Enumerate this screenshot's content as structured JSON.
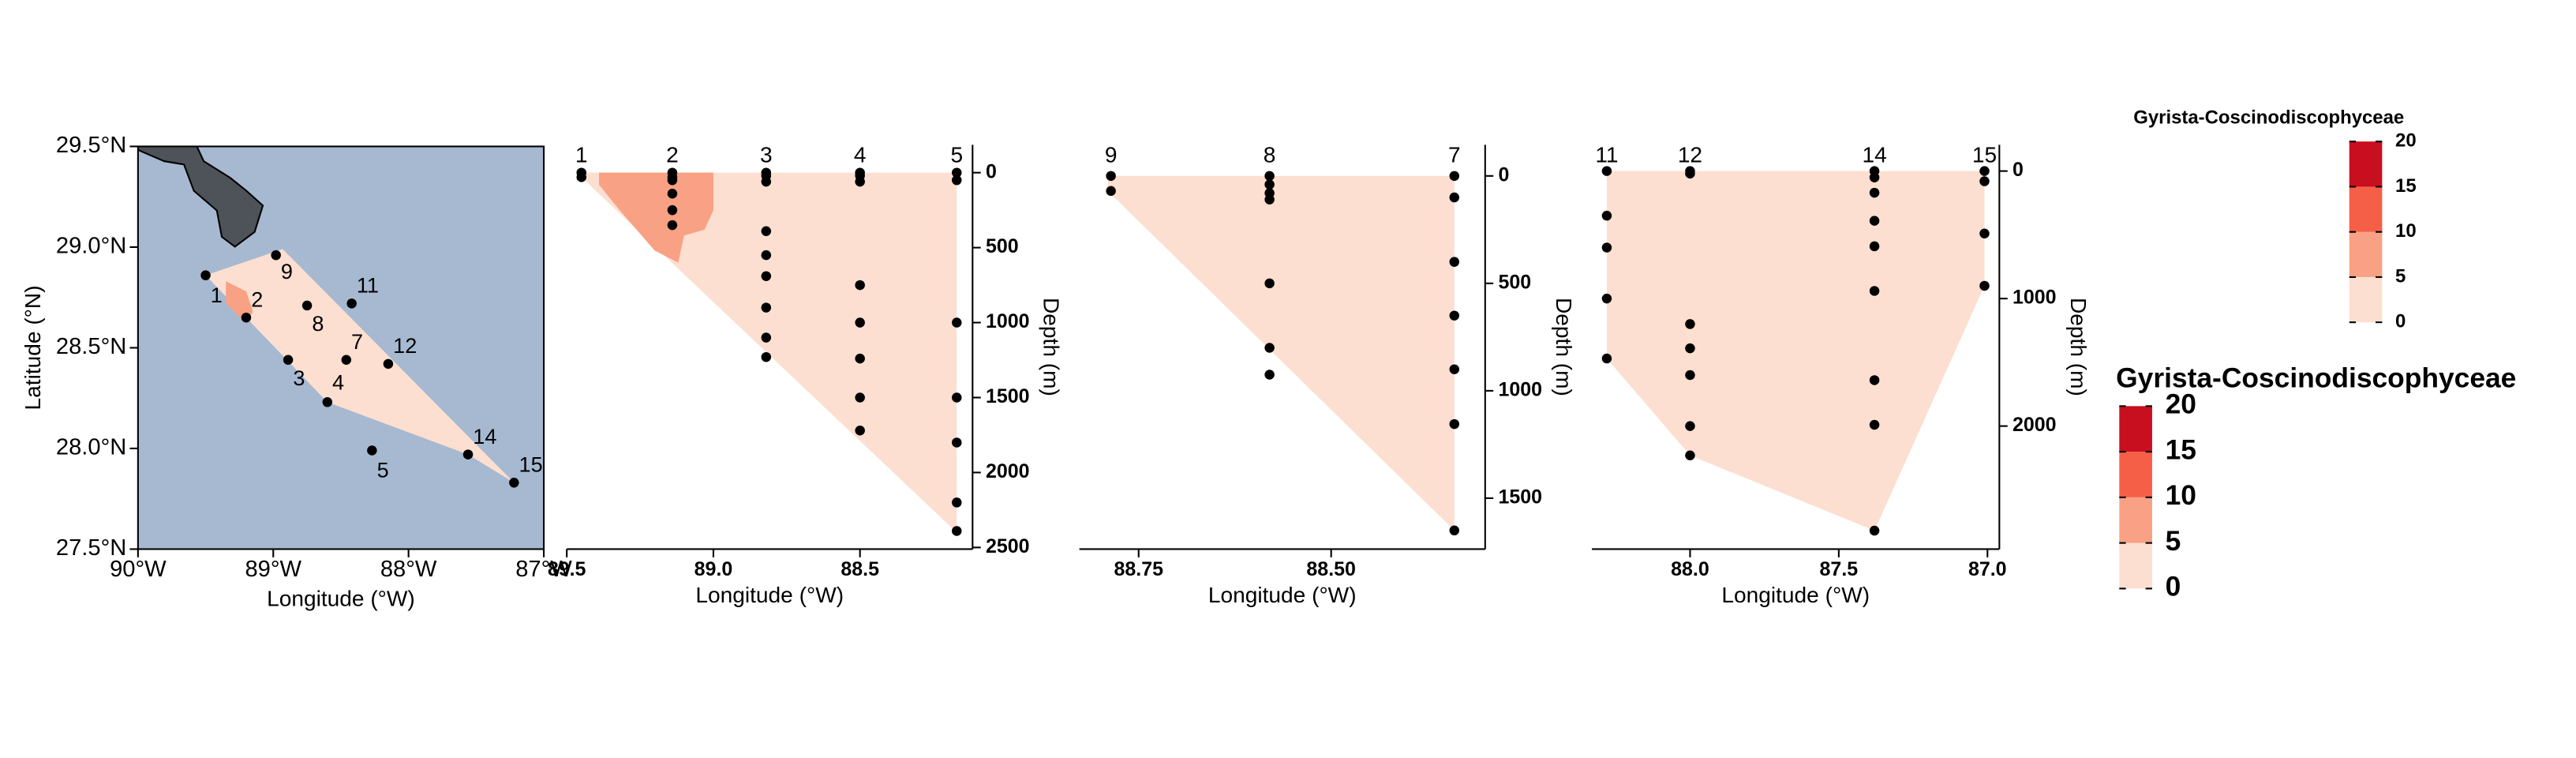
{
  "chart_data": [
    {
      "type": "map",
      "xlabel": "Longitude (°W)",
      "ylabel": "Latitude (°N)",
      "xlim": [
        -90,
        -87
      ],
      "ylim": [
        27.5,
        29.5
      ],
      "xticks": [
        {
          "value": -90,
          "label": "90°W"
        },
        {
          "value": -89,
          "label": "89°W"
        },
        {
          "value": -88,
          "label": "88°W"
        },
        {
          "value": -87,
          "label": "87°W"
        }
      ],
      "yticks": [
        {
          "value": 27.5,
          "label": "27.5°N"
        },
        {
          "value": 28,
          "label": "28.0°N"
        },
        {
          "value": 28.5,
          "label": "28.5°N"
        },
        {
          "value": 29,
          "label": "29.0°N"
        },
        {
          "value": 29.5,
          "label": "29.5°N"
        }
      ],
      "ocean_color": "#a6b9d1",
      "land_color": "#4d5359",
      "regions": [
        {
          "color": "#fcdfd0",
          "lon": [
            -89.5,
            -88.93,
            -87.22,
            -87.56,
            -88.6
          ],
          "lat": [
            28.86,
            28.99,
            27.83,
            27.97,
            28.23
          ]
        },
        {
          "color": "#f9a184",
          "lon": [
            -89.35,
            -89.2,
            -89.15,
            -89.2,
            -89.35
          ],
          "lat": [
            28.83,
            28.78,
            28.68,
            28.62,
            28.72
          ]
        }
      ],
      "stations": {
        "labels": [
          "1",
          "2",
          "3",
          "4",
          "5",
          "7",
          "8",
          "9",
          "11",
          "12",
          "14",
          "15"
        ],
        "lon": [
          -89.5,
          -89.2,
          -88.89,
          -88.6,
          -88.27,
          -88.46,
          -88.75,
          -88.98,
          -88.42,
          -88.15,
          -87.56,
          -87.22
        ],
        "lat": [
          28.86,
          28.65,
          28.44,
          28.23,
          27.99,
          28.44,
          28.71,
          28.96,
          28.72,
          28.42,
          27.97,
          27.83
        ]
      }
    },
    {
      "type": "section",
      "xlabel": "Longitude (°W)",
      "ylabel": "Depth (m)",
      "xlim": [
        89.5,
        88.116
      ],
      "ylim": [
        2511,
        -186
      ],
      "xticks": [
        89.5,
        {
          "value": 89,
          "label": "89.0"
        },
        88.5
      ],
      "yticks": [
        0,
        500,
        1000,
        1500,
        2000,
        2500
      ],
      "regions": [
        {
          "color": "#fcdfd0",
          "lon": [
            89.45,
            88.17,
            88.17,
            89.45
          ],
          "depth": [
            0,
            0,
            2400,
            30
          ]
        },
        {
          "color": "#f9a184",
          "lon": [
            89.39,
            89.0,
            89.0,
            89.03,
            89.1,
            89.12,
            89.2,
            89.32,
            89.39
          ],
          "depth": [
            0,
            0,
            250,
            380,
            420,
            600,
            520,
            250,
            80
          ]
        }
      ],
      "stations": [
        {
          "label": "1",
          "lon": 89.45,
          "depths": [
            0,
            30
          ]
        },
        {
          "label": "2",
          "lon": 89.14,
          "depths": [
            0,
            30,
            50,
            140,
            250,
            350
          ]
        },
        {
          "label": "3",
          "lon": 88.82,
          "depths": [
            0,
            20,
            60,
            390,
            550,
            690,
            900,
            1100,
            1230
          ]
        },
        {
          "label": "4",
          "lon": 88.5,
          "depths": [
            0,
            20,
            60,
            750,
            1000,
            1240,
            1500,
            1720
          ]
        },
        {
          "label": "5",
          "lon": 88.17,
          "depths": [
            0,
            50,
            1000,
            1500,
            1800,
            2200,
            2390
          ]
        }
      ]
    },
    {
      "type": "section",
      "xlabel": "Longitude (°W)",
      "ylabel": "Depth (m)",
      "xlim": [
        88.827,
        88.3
      ],
      "ylim": [
        1737,
        -145
      ],
      "xticks": [
        88.75,
        {
          "value": 88.5,
          "label": "88.50"
        }
      ],
      "yticks": [
        0,
        500,
        1000,
        1500
      ],
      "regions": [
        {
          "color": "#fcdfd0",
          "lon": [
            88.79,
            88.34,
            88.34,
            88.79
          ],
          "depth": [
            0,
            0,
            1650,
            70
          ]
        }
      ],
      "stations": [
        {
          "label": "9",
          "lon": 88.786,
          "depths": [
            0,
            70
          ]
        },
        {
          "label": "8",
          "lon": 88.58,
          "depths": [
            0,
            40,
            80,
            110,
            500,
            800,
            925
          ]
        },
        {
          "label": "7",
          "lon": 88.34,
          "depths": [
            0,
            100,
            400,
            650,
            900,
            1155,
            1650
          ]
        }
      ]
    },
    {
      "type": "section",
      "xlabel": "Longitude (°W)",
      "ylabel": "Depth (m)",
      "xlim": [
        88.33,
        86.96
      ],
      "ylim": [
        2965,
        -206
      ],
      "xticks": [
        {
          "value": 88,
          "label": "88.0"
        },
        87.5,
        {
          "value": 87,
          "label": "87.0"
        }
      ],
      "yticks": [
        0,
        1000,
        2000
      ],
      "regions": [
        {
          "color": "#fcdfd0",
          "lon": [
            88.28,
            87.01,
            87.01,
            87.38,
            88.0,
            88.28
          ],
          "depth": [
            0,
            0,
            900,
            2820,
            2230,
            1470
          ]
        }
      ],
      "stations": [
        {
          "label": "11",
          "lon": 88.28,
          "depths": [
            0,
            350,
            600,
            1000,
            1470
          ]
        },
        {
          "label": "12",
          "lon": 88.0,
          "depths": [
            0,
            20,
            1200,
            1390,
            1600,
            2000,
            2230
          ]
        },
        {
          "label": "14",
          "lon": 87.38,
          "depths": [
            0,
            50,
            170,
            390,
            590,
            940,
            1640,
            1990,
            2820
          ]
        },
        {
          "label": "15",
          "lon": 87.01,
          "depths": [
            0,
            80,
            490,
            900
          ]
        }
      ]
    }
  ],
  "legends": [
    {
      "title": "Gyrista-Coscinodiscophyceae",
      "levels": [
        0,
        5,
        10,
        15,
        20
      ],
      "colors": [
        "#fcdfd0",
        "#f9a184",
        "#f65f47",
        "#c80f1f"
      ]
    },
    {
      "title": "Gyrista-Coscinodiscophyceae",
      "levels": [
        0,
        5,
        10,
        15,
        20
      ],
      "colors": [
        "#fcdfd0",
        "#f9a184",
        "#f65f47",
        "#c80f1f"
      ]
    }
  ]
}
